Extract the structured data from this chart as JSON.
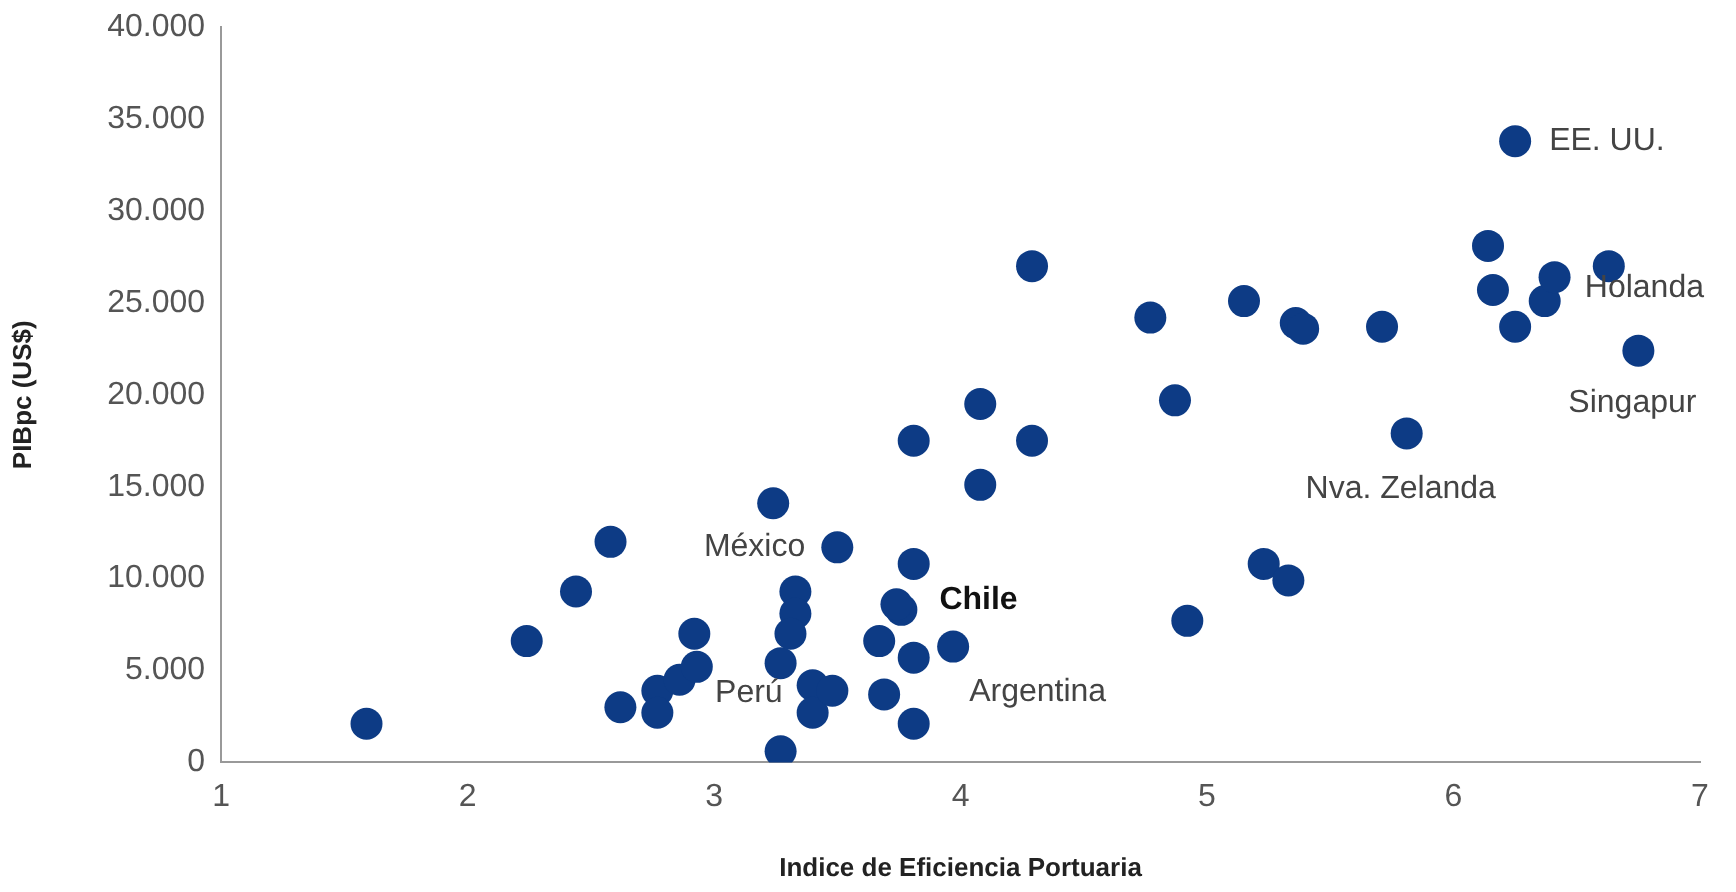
{
  "chart_data": {
    "type": "scatter",
    "xlabel": "Indice de Eficiencia Portuaria",
    "ylabel": "PIBpc (US$)",
    "x": [
      1.59,
      2.24,
      2.44,
      2.58,
      2.62,
      2.77,
      2.77,
      2.86,
      2.92,
      2.93,
      3.24,
      3.27,
      3.27,
      3.33,
      3.33,
      3.31,
      3.4,
      3.4,
      3.48,
      3.5,
      3.67,
      3.69,
      3.76,
      3.74,
      3.81,
      3.81,
      3.81,
      3.81,
      3.97,
      4.08,
      4.08,
      4.29,
      4.29,
      4.77,
      4.87,
      4.92,
      5.15,
      5.36,
      5.39,
      5.23,
      5.33,
      5.71,
      5.81,
      6.25,
      6.14,
      6.16,
      6.25,
      6.37,
      6.41,
      6.63,
      6.75
    ],
    "series": [
      {
        "color": "#0d3b85",
        "values": [
          2100,
          6600,
          9300,
          12000,
          3000,
          3900,
          2700,
          4500,
          7000,
          5200,
          14100,
          5400,
          600,
          9300,
          8100,
          7000,
          4200,
          2700,
          3900,
          11700,
          6600,
          3700,
          8300,
          8600,
          10800,
          5700,
          2100,
          17500,
          6300,
          19500,
          15100,
          27000,
          17500,
          24200,
          19700,
          7700,
          25100,
          23900,
          23600,
          10800,
          9900,
          23700,
          17900,
          33800,
          28100,
          25700,
          23700,
          25100,
          26400,
          27000,
          22400
        ]
      }
    ],
    "xlim": [
      1,
      7
    ],
    "xticks": [
      1,
      2,
      3,
      4,
      5,
      6,
      7
    ],
    "ylim": [
      0,
      40000
    ],
    "yticks": [
      {
        "value": 0,
        "label": "0"
      },
      {
        "value": 5000,
        "label": "5.000"
      },
      {
        "value": 10000,
        "label": "10.000"
      },
      {
        "value": 15000,
        "label": "15.000"
      },
      {
        "value": 20000,
        "label": "20.000"
      },
      {
        "value": 25000,
        "label": "25.000"
      },
      {
        "value": 30000,
        "label": "30.000"
      },
      {
        "value": 35000,
        "label": "35.000"
      },
      {
        "value": 40000,
        "label": "40.000"
      }
    ],
    "marker": "circle",
    "grid": false,
    "legend": false,
    "annotations": [
      {
        "text": "EE. UU.",
        "x": 6.25,
        "y": 33800
      },
      {
        "text": "Holanda",
        "x": 6.63,
        "y": 27000
      },
      {
        "text": "Singapur",
        "x": 6.75,
        "y": 22400
      },
      {
        "text": "Nva. Zelanda",
        "x": 5.81,
        "y": 17900
      },
      {
        "text": "Chile",
        "x": 3.76,
        "y": 8300
      },
      {
        "text": "México",
        "x": 3.5,
        "y": 11700
      },
      {
        "text": "Perú",
        "x": 3.4,
        "y": 4200
      },
      {
        "text": "Argentina",
        "x": 3.97,
        "y": 6300
      }
    ]
  }
}
